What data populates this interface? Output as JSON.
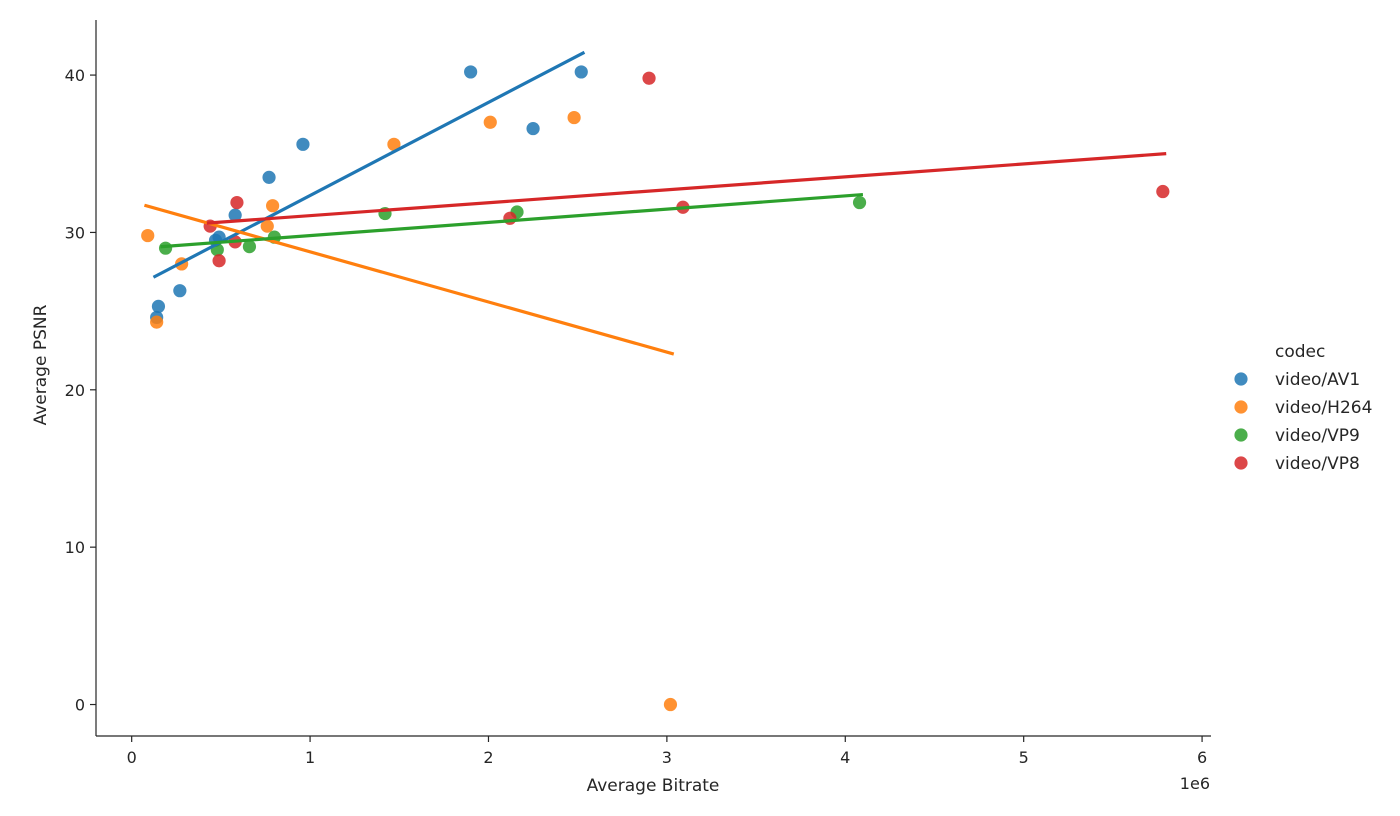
{
  "chart_data": {
    "type": "scatter",
    "title": "",
    "xlabel": "Average Bitrate",
    "ylabel": "Average PSNR",
    "x_offset_label": "1e6",
    "xlim": [
      -200000,
      6050000
    ],
    "ylim": [
      -2,
      43.5
    ],
    "x_ticks": [
      0,
      1000000,
      2000000,
      3000000,
      4000000,
      5000000,
      6000000
    ],
    "x_tick_labels": [
      "0",
      "1",
      "2",
      "3",
      "4",
      "5",
      "6"
    ],
    "y_ticks": [
      0,
      10,
      20,
      30,
      40
    ],
    "y_tick_labels": [
      "0",
      "10",
      "20",
      "30",
      "40"
    ],
    "grid": false,
    "legend": {
      "title": "codec",
      "position": "right",
      "entries": [
        "video/AV1",
        "video/H264",
        "video/VP9",
        "video/VP8"
      ]
    },
    "series": [
      {
        "name": "video/AV1",
        "color": "#1f77b4",
        "points": [
          [
            140000,
            24.6
          ],
          [
            150000,
            25.3
          ],
          [
            270000,
            26.3
          ],
          [
            470000,
            29.5
          ],
          [
            490000,
            29.7
          ],
          [
            580000,
            31.1
          ],
          [
            770000,
            33.5
          ],
          [
            960000,
            35.6
          ],
          [
            1900000,
            40.2
          ],
          [
            2250000,
            36.6
          ],
          [
            2520000,
            40.2
          ]
        ],
        "fit": [
          [
            130000,
            27.2
          ],
          [
            2530000,
            41.4
          ]
        ]
      },
      {
        "name": "video/H264",
        "color": "#ff7f0e",
        "points": [
          [
            90000,
            29.8
          ],
          [
            140000,
            24.3
          ],
          [
            280000,
            28.0
          ],
          [
            760000,
            30.4
          ],
          [
            790000,
            31.7
          ],
          [
            1470000,
            35.6
          ],
          [
            2010000,
            37.0
          ],
          [
            2480000,
            37.3
          ],
          [
            3020000,
            0.0
          ]
        ],
        "fit": [
          [
            80000,
            31.7
          ],
          [
            3030000,
            22.3
          ]
        ]
      },
      {
        "name": "video/VP9",
        "color": "#2ca02c",
        "points": [
          [
            190000,
            29.0
          ],
          [
            480000,
            28.9
          ],
          [
            660000,
            29.1
          ],
          [
            800000,
            29.7
          ],
          [
            1420000,
            31.2
          ],
          [
            2160000,
            31.3
          ],
          [
            4080000,
            31.9
          ]
        ],
        "fit": [
          [
            170000,
            29.1
          ],
          [
            4090000,
            32.4
          ]
        ]
      },
      {
        "name": "video/VP8",
        "color": "#d62728",
        "points": [
          [
            440000,
            30.4
          ],
          [
            490000,
            28.2
          ],
          [
            580000,
            29.4
          ],
          [
            590000,
            31.9
          ],
          [
            2120000,
            30.9
          ],
          [
            2900000,
            39.8
          ],
          [
            3090000,
            31.6
          ],
          [
            5780000,
            32.6
          ]
        ],
        "fit": [
          [
            430000,
            30.6
          ],
          [
            5790000,
            35.0
          ]
        ]
      }
    ]
  }
}
